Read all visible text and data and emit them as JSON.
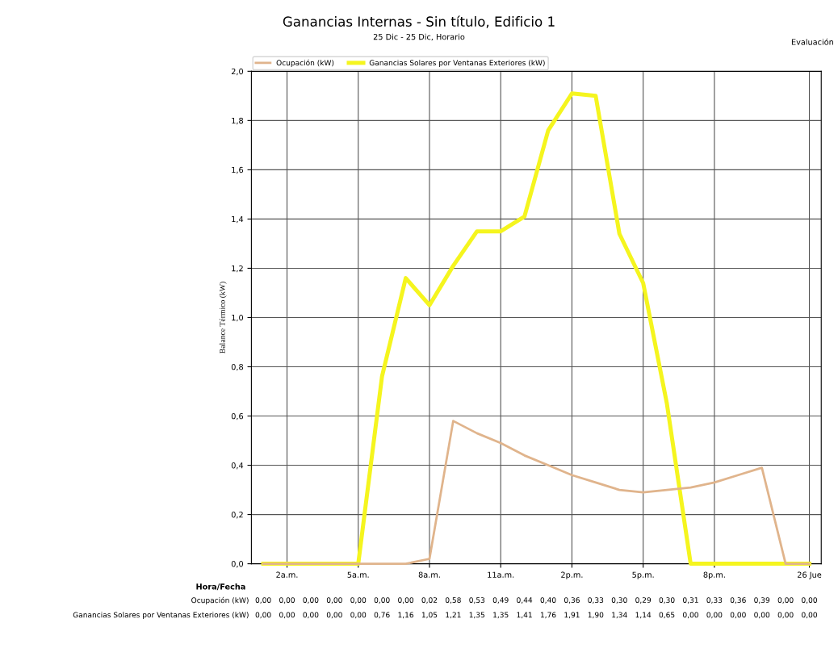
{
  "chart_data": {
    "type": "line",
    "title": "Ganancias Internas - Sin título, Edificio 1",
    "subtitle": "25 Dic - 25 Dic, Horario",
    "xlabel": "Hora/Fecha",
    "ylabel": "Balance Térmico (kW)",
    "annotations": [
      "Evaluación"
    ],
    "categories": [
      null,
      "2a.m.",
      null,
      null,
      "5a.m.",
      null,
      null,
      "8a.m.",
      null,
      null,
      "11a.m.",
      null,
      null,
      "2p.m.",
      null,
      null,
      "5p.m.",
      null,
      null,
      "8p.m.",
      null,
      null,
      null,
      "26 Jue"
    ],
    "series": [
      {
        "name": "Ocupación (kW)",
        "color": "#e0b48c",
        "values": [
          0.0,
          0.0,
          0.0,
          0.0,
          0.0,
          0.0,
          0.0,
          0.02,
          0.58,
          0.53,
          0.49,
          0.44,
          0.4,
          0.36,
          0.33,
          0.3,
          0.29,
          0.3,
          0.31,
          0.33,
          0.36,
          0.39,
          0.0,
          0.0
        ],
        "value_labels": [
          "0,00",
          "0,00",
          "0,00",
          "0,00",
          "0,00",
          "0,00",
          "0,00",
          "0,02",
          "0,58",
          "0,53",
          "0,49",
          "0,44",
          "0,40",
          "0,36",
          "0,33",
          "0,30",
          "0,29",
          "0,30",
          "0,31",
          "0,33",
          "0,36",
          "0,39",
          "0,00",
          "0,00"
        ]
      },
      {
        "name": "Ganancias Solares por Ventanas Exteriores (kW)",
        "color": "#f5f51e",
        "values": [
          0.0,
          0.0,
          0.0,
          0.0,
          0.0,
          0.76,
          1.16,
          1.05,
          1.21,
          1.35,
          1.35,
          1.41,
          1.76,
          1.91,
          1.9,
          1.34,
          1.14,
          0.65,
          0.0,
          0.0,
          0.0,
          0.0,
          0.0,
          0.0
        ],
        "value_labels": [
          "0,00",
          "0,00",
          "0,00",
          "0,00",
          "0,00",
          "0,76",
          "1,16",
          "1,05",
          "1,21",
          "1,35",
          "1,35",
          "1,41",
          "1,76",
          "1,91",
          "1,90",
          "1,34",
          "1,14",
          "0,65",
          "0,00",
          "0,00",
          "0,00",
          "0,00",
          "0,00",
          "0,00"
        ]
      }
    ],
    "ylim": [
      0,
      2.0
    ],
    "yticks": [
      {
        "value": 0,
        "label": "0,0"
      },
      {
        "value": 0.2,
        "label": "0,2"
      },
      {
        "value": 0.4,
        "label": "0,4"
      },
      {
        "value": 0.6,
        "label": "0,6"
      },
      {
        "value": 0.8,
        "label": "0,8"
      },
      {
        "value": 1.0,
        "label": "1,0"
      },
      {
        "value": 1.2,
        "label": "1,2"
      },
      {
        "value": 1.4,
        "label": "1,4"
      },
      {
        "value": 1.6,
        "label": "1,6"
      },
      {
        "value": 1.8,
        "label": "1,8"
      },
      {
        "value": 2.0,
        "label": "2,0"
      }
    ],
    "grid": true,
    "legend": "top",
    "marker": "none",
    "line_style": "solid"
  }
}
